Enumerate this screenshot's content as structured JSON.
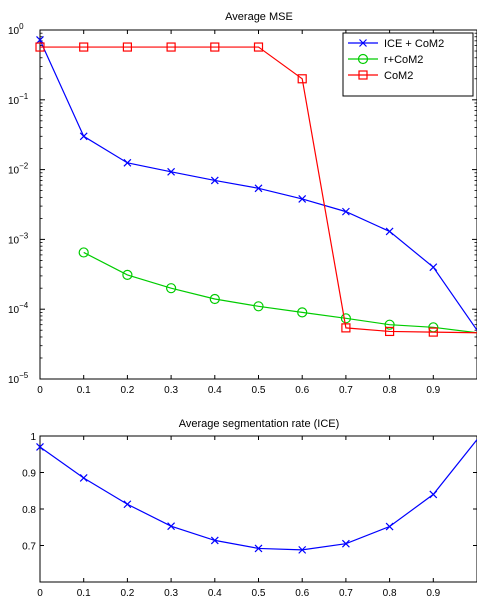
{
  "chart_data": [
    {
      "type": "line",
      "title": "Average MSE",
      "xlabel": "",
      "ylabel": "",
      "yscale": "log",
      "xlim": [
        0,
        1
      ],
      "ylim": [
        1e-05,
        1
      ],
      "x_ticks": [
        "0",
        "0.1",
        "0.2",
        "0.3",
        "0.4",
        "0.5",
        "0.6",
        "0.7",
        "0.8",
        "0.9"
      ],
      "y_ticks": [
        {
          "base": "10",
          "exp": "0"
        },
        {
          "base": "10",
          "exp": "−1"
        },
        {
          "base": "10",
          "exp": "−2"
        },
        {
          "base": "10",
          "exp": "−3"
        },
        {
          "base": "10",
          "exp": "−4"
        },
        {
          "base": "10",
          "exp": "−5"
        }
      ],
      "grid": false,
      "legend_position": "top-right",
      "series": [
        {
          "name": "ICE + CoM2",
          "color": "#0000ff",
          "marker": "x",
          "x": [
            0,
            0.1,
            0.2,
            0.3,
            0.4,
            0.5,
            0.6,
            0.7,
            0.8,
            0.9,
            1.0
          ],
          "values": [
            0.72,
            0.03,
            0.0125,
            0.0093,
            0.007,
            0.0054,
            0.0038,
            0.0025,
            0.0013,
            0.0004,
            5e-05
          ],
          "markers_shown": [
            true,
            true,
            true,
            true,
            true,
            true,
            true,
            true,
            true,
            true,
            false
          ]
        },
        {
          "name": "r+CoM2",
          "color": "#00cc00",
          "marker": "o",
          "x": [
            0.1,
            0.2,
            0.3,
            0.4,
            0.5,
            0.6,
            0.7,
            0.8,
            0.9,
            1.0
          ],
          "values": [
            0.00065,
            0.00031,
            0.0002,
            0.00014,
            0.00011,
            9e-05,
            7.4e-05,
            6e-05,
            5.5e-05,
            4.6e-05
          ],
          "markers_shown": [
            true,
            true,
            true,
            true,
            true,
            true,
            true,
            true,
            true,
            false
          ]
        },
        {
          "name": "CoM2",
          "color": "#ff0000",
          "marker": "s",
          "x": [
            0,
            0.1,
            0.2,
            0.3,
            0.4,
            0.5,
            0.6,
            0.7,
            0.8,
            0.9,
            1.0
          ],
          "values": [
            0.57,
            0.57,
            0.57,
            0.57,
            0.57,
            0.57,
            0.2,
            5.4e-05,
            4.8e-05,
            4.7e-05,
            4.6e-05
          ],
          "markers_shown": [
            true,
            true,
            true,
            true,
            true,
            true,
            true,
            true,
            true,
            true,
            false
          ]
        }
      ]
    },
    {
      "type": "line",
      "title": "Average segmentation rate (ICE)",
      "xlabel": "",
      "ylabel": "",
      "yscale": "linear",
      "xlim": [
        0,
        1
      ],
      "ylim": [
        0.6,
        1.0
      ],
      "x_ticks": [
        "0",
        "0.1",
        "0.2",
        "0.3",
        "0.4",
        "0.5",
        "0.6",
        "0.7",
        "0.8",
        "0.9"
      ],
      "y_ticks": [
        "1",
        "0.9",
        "0.8",
        "0.7"
      ],
      "y_tick_values": [
        1.0,
        0.9,
        0.8,
        0.7
      ],
      "grid": false,
      "series": [
        {
          "color": "#0000ff",
          "marker": "x",
          "x": [
            0,
            0.1,
            0.2,
            0.3,
            0.4,
            0.5,
            0.6,
            0.7,
            0.8,
            0.9,
            1.0
          ],
          "values": [
            0.97,
            0.885,
            0.813,
            0.753,
            0.714,
            0.692,
            0.688,
            0.705,
            0.752,
            0.84,
            0.99
          ],
          "markers_shown": [
            true,
            true,
            true,
            true,
            true,
            true,
            true,
            true,
            true,
            true,
            false
          ]
        }
      ]
    }
  ]
}
